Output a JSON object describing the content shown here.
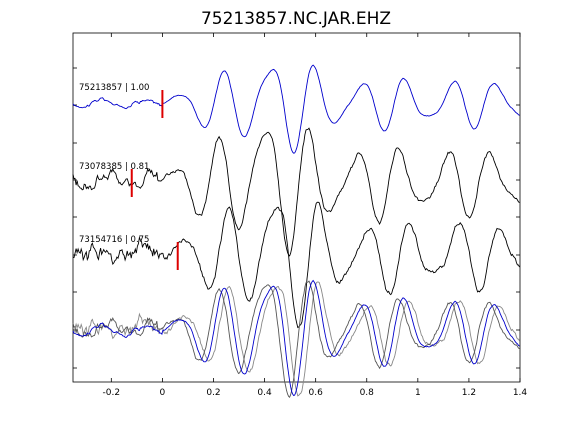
{
  "chart_data": {
    "type": "line",
    "title": "75213857.NC.JAR.EHZ",
    "xlabel": "",
    "ylabel": "",
    "xlim": [
      -0.35,
      1.4
    ],
    "x_ticks": [
      -0.2,
      0,
      0.2,
      0.4,
      0.6,
      0.8,
      1,
      1.2,
      1.4
    ],
    "x_tick_labels": [
      "-0.2",
      "0",
      "0.2",
      "0.4",
      "0.6",
      "0.8",
      "1",
      "1.2",
      "1.4"
    ],
    "grid": false,
    "legend": "none",
    "traces": [
      {
        "label": "75213857 | 1.00",
        "pick_time": 0.0,
        "color": "#0000cc"
      },
      {
        "label": "73078385 | 0.81",
        "pick_time": -0.12,
        "color": "#000000"
      },
      {
        "label": "73154716 | 0.75",
        "pick_time": 0.06,
        "color": "#000000"
      }
    ],
    "stack": {
      "colors": [
        "#0000cc",
        "#555555",
        "#888888"
      ]
    }
  }
}
